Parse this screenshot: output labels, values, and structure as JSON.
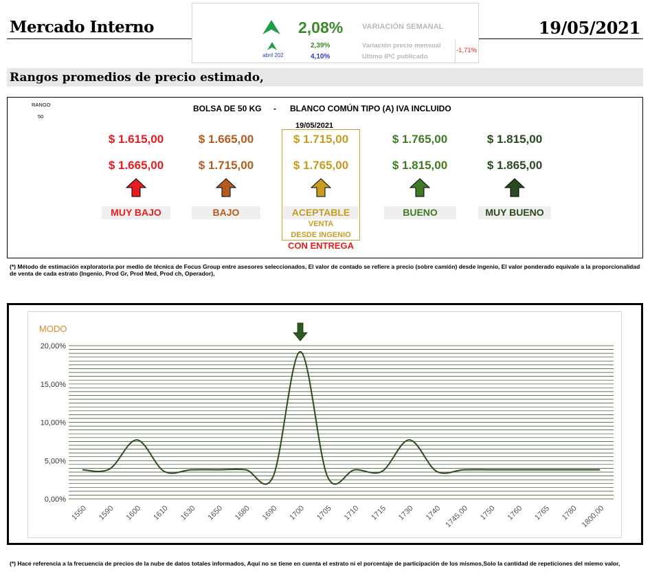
{
  "header": {
    "title": "Mercado Interno",
    "date": "19/05/2021"
  },
  "variation": {
    "weekly_value": "2,08%",
    "weekly_label": "VARIACIÓN SEMANAL",
    "month_label": "abril 202",
    "monthly_value": "2,39%",
    "monthly_label": "Variación precio mensual",
    "ipc_value": "4,10%",
    "ipc_label": "Ultimo IPC publicado",
    "diff_value": "-1,71%",
    "colors": {
      "up_arrow": "#1e9e45",
      "weekly": "#3c8a2a",
      "ipc": "#2a3ad0",
      "diff": "#e02020",
      "label": "#b8b8b8"
    }
  },
  "subtitle": "Rangos promedios de precio estimado,",
  "ranges": {
    "range_label": "RANGO",
    "range_value": "50",
    "product": "BOLSA DE 50 KG",
    "separator": "-",
    "description": "BLANCO COMÚN TIPO (A) IVA INCLUIDO",
    "date": "19/05/2021",
    "categories": [
      {
        "label": "MUY BAJO",
        "low": "$ 1.615,00",
        "high": "$ 1.665,00",
        "color": "#e41e1e"
      },
      {
        "label": "BAJO",
        "low": "$ 1.665,00",
        "high": "$ 1.715,00",
        "color": "#b35c1e"
      },
      {
        "label": "ACEPTABLE",
        "low": "$ 1.715,00",
        "high": "$ 1.765,00",
        "color": "#c79b22"
      },
      {
        "label": "BUENO",
        "low": "$ 1.765,00",
        "high": "$ 1.815,00",
        "color": "#3f7a24"
      },
      {
        "label": "MUY BUENO",
        "low": "$ 1.815,00",
        "high": "$ 1.865,00",
        "color": "#2b4a1e"
      }
    ],
    "sale_line1": "VENTA",
    "sale_line2": "DESDE INGENIO",
    "delivery": "CON ENTREGA"
  },
  "note_top": "(*) Método de estimación exploratoria por medio de técnica de Focus Group entre asesores seleccionados, El valor de contado se refiere a precio (sobre camión) desde ingenio, El valor ponderado equivale a la proporcionalidad de venta de cada estrato (Ingenio, Prod Gr, Prod Med, Prod ch, Operador),",
  "note_bottom": "(*) Hace referencia a la frecuencia de precios de la nube de datos totales informados, Aquí no se tiene en cuenta el estrato ni el porcentaje de participación de los mismos,Solo la cantidad de repeticiones del miemo valor,",
  "chart_data": {
    "type": "line",
    "title": "MODO",
    "categories": [
      "1550",
      "1590",
      "1600",
      "1610",
      "1630",
      "1650",
      "1680",
      "1690",
      "1700",
      "1705",
      "1710",
      "1715",
      "1730",
      "1740",
      "1745,00",
      "1750",
      "1760",
      "1765",
      "1780",
      "1800,00"
    ],
    "values": [
      3.8,
      3.9,
      7.7,
      3.6,
      3.8,
      3.8,
      3.8,
      2.9,
      19.2,
      2.9,
      3.8,
      3.6,
      7.7,
      3.6,
      3.8,
      3.8,
      3.8,
      3.8,
      3.8,
      3.8
    ],
    "y_ticks": [
      "0,00%",
      "5,00%",
      "10,00%",
      "15,00%",
      "20,00%"
    ],
    "ylim": [
      0,
      20
    ],
    "grid": true,
    "marker_category": "1700",
    "line_color": "#2b4a1e",
    "grid_color": "#2b4a1e",
    "title_color": "#d28a2a"
  }
}
